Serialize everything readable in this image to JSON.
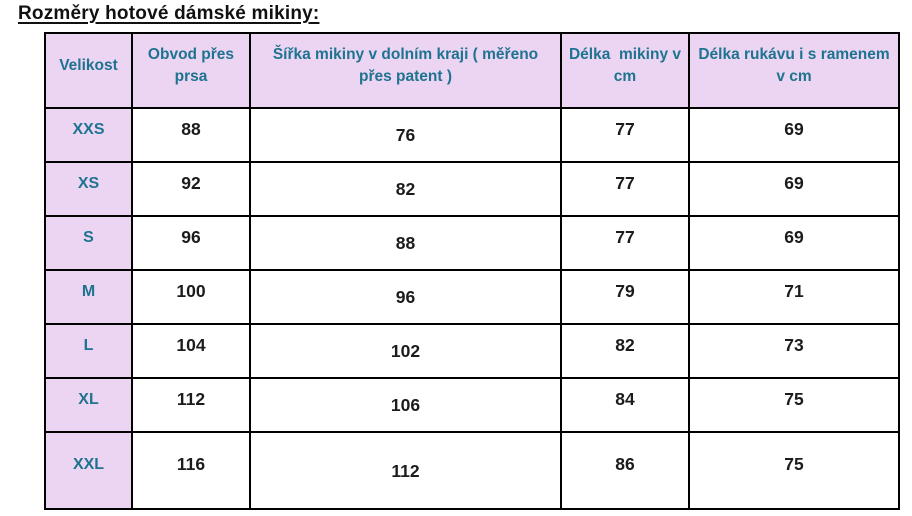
{
  "title": "Rozměry hotové dámské mikiny:",
  "size_table": {
    "headers": {
      "size": "Velikost",
      "chest": "Obvod přes prsa",
      "hem_width": "Šířka mikiny v dolním kraji ( měřeno přes patent )",
      "length": "Délka  mikiny v cm",
      "sleeve": "Délka rukávu i s ramenem v cm"
    },
    "rows": [
      {
        "size": "XXS",
        "chest": "88",
        "hem_width": "76",
        "length": "77",
        "sleeve": "69"
      },
      {
        "size": "XS",
        "chest": "92",
        "hem_width": "82",
        "length": "77",
        "sleeve": "69"
      },
      {
        "size": "S",
        "chest": "96",
        "hem_width": "88",
        "length": "77",
        "sleeve": "69"
      },
      {
        "size": "M",
        "chest": "100",
        "hem_width": "96",
        "length": "79",
        "sleeve": "71"
      },
      {
        "size": "L",
        "chest": "104",
        "hem_width": "102",
        "length": "82",
        "sleeve": "73"
      },
      {
        "size": "XL",
        "chest": "112",
        "hem_width": "106",
        "length": "84",
        "sleeve": "75"
      },
      {
        "size": "XXL",
        "chest": "116",
        "hem_width": "112",
        "length": "86",
        "sleeve": "75"
      }
    ]
  },
  "colors": {
    "header_bg": "#ecd5f2",
    "header_text": "#1e7390",
    "value_text": "#1c1c1c",
    "border": "#000000",
    "title_text": "#111111"
  }
}
